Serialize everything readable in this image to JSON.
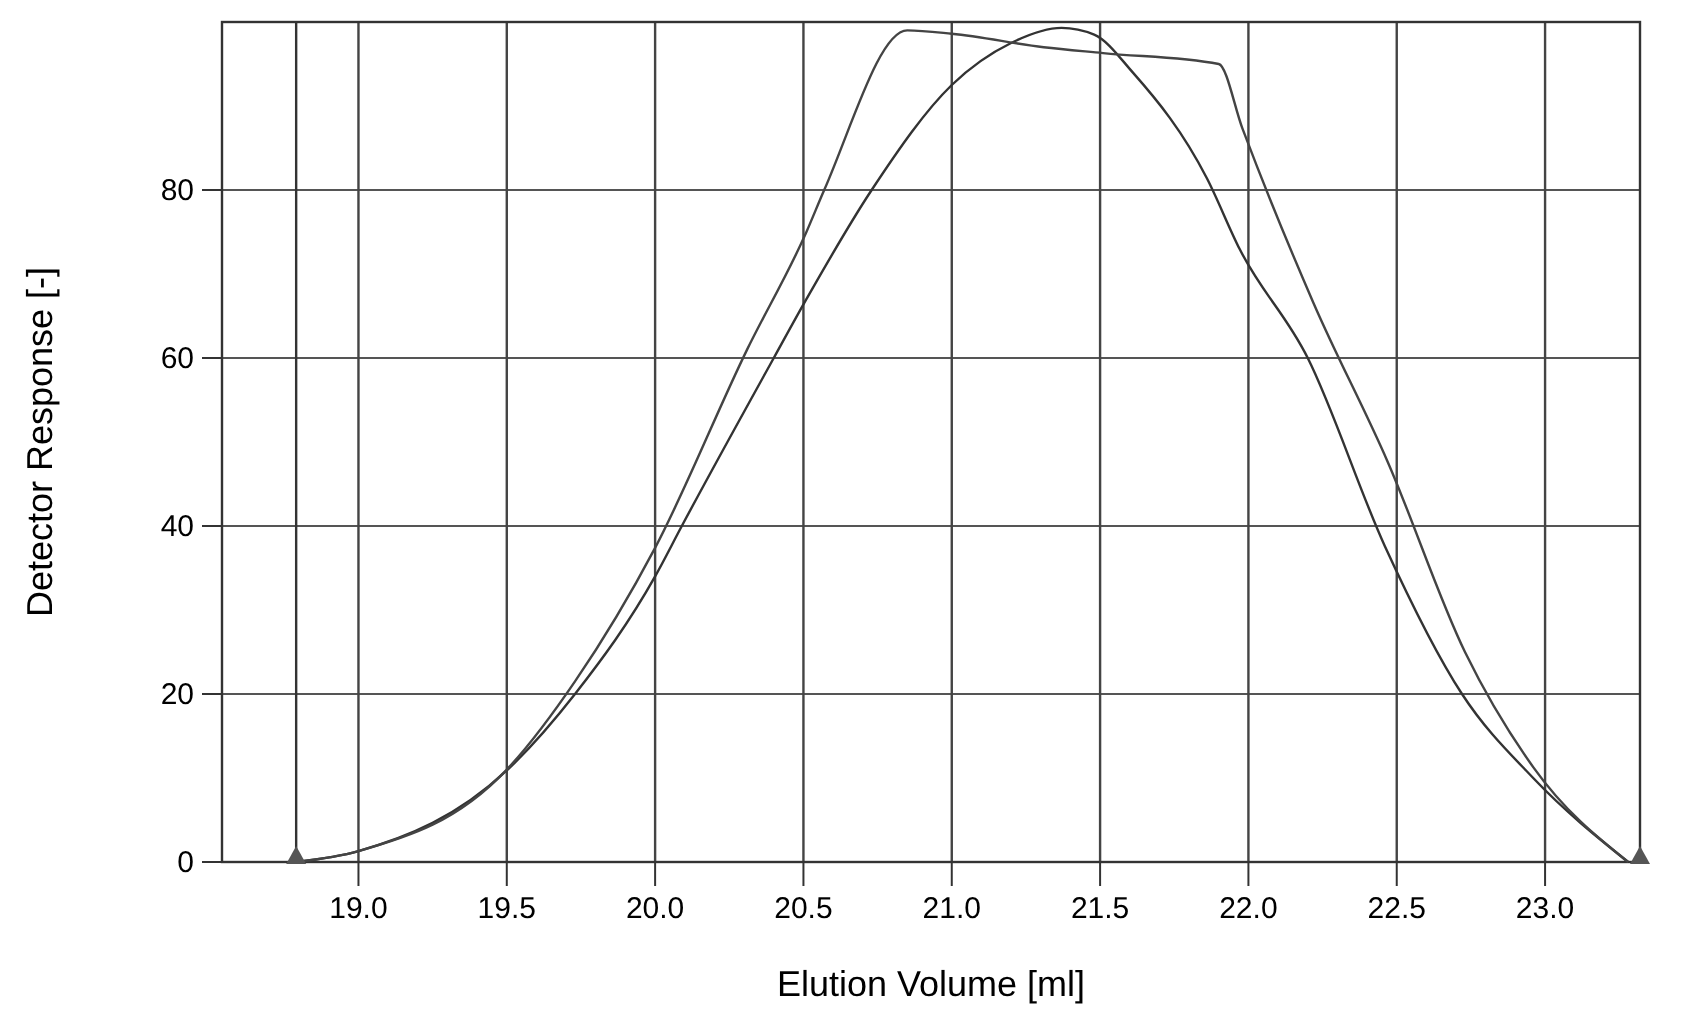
{
  "chart_data": {
    "type": "line",
    "xlabel": "Elution Volume [ml]",
    "ylabel": "Detector Response [-]",
    "xlim": [
      18.54,
      23.32
    ],
    "ylim": [
      0,
      100
    ],
    "xticks": [
      {
        "value": 19,
        "label": "19.0"
      },
      19.5,
      {
        "value": 20,
        "label": "20.0"
      },
      20.5,
      {
        "value": 21,
        "label": "21.0"
      },
      21.5,
      {
        "value": 22,
        "label": "22.0"
      },
      22.5,
      {
        "value": 23,
        "label": "23.0"
      }
    ],
    "yticks": [
      0,
      20,
      40,
      60,
      80
    ],
    "grid": true,
    "line_style": "solid",
    "marker": "none",
    "ref_lines": [
      {
        "axis": "x",
        "value": 18.79,
        "color": "#333333"
      }
    ],
    "series": [
      {
        "color": "#333333",
        "x": [
          18.79,
          19.0,
          19.5,
          19.73,
          20.0,
          20.09,
          20.4,
          20.51,
          20.73,
          21.0,
          21.2,
          21.37,
          21.48,
          21.61,
          21.86,
          21.97,
          22.2,
          22.46,
          22.72,
          22.96,
          23.28
        ],
        "values": [
          0,
          1.3,
          10.9,
          20,
          34,
          40,
          60,
          67,
          80,
          92.5,
          97.5,
          99.3,
          98.5,
          94,
          81.4,
          73,
          60,
          37.6,
          20,
          10,
          0
        ]
      },
      {
        "color": "#444444",
        "x": [
          18.79,
          19.0,
          19.5,
          19.73,
          20.0,
          20.31,
          20.51,
          20.57,
          20.85,
          21.0,
          21.31,
          21.51,
          21.9,
          21.98,
          22.22,
          22.47,
          22.73,
          22.96,
          23.28
        ],
        "values": [
          0,
          1.3,
          11,
          21.5,
          37.4,
          61,
          75,
          80,
          99,
          98.6,
          97,
          96.3,
          95,
          87.3,
          66.5,
          47.6,
          25,
          11.3,
          0
        ]
      }
    ]
  }
}
